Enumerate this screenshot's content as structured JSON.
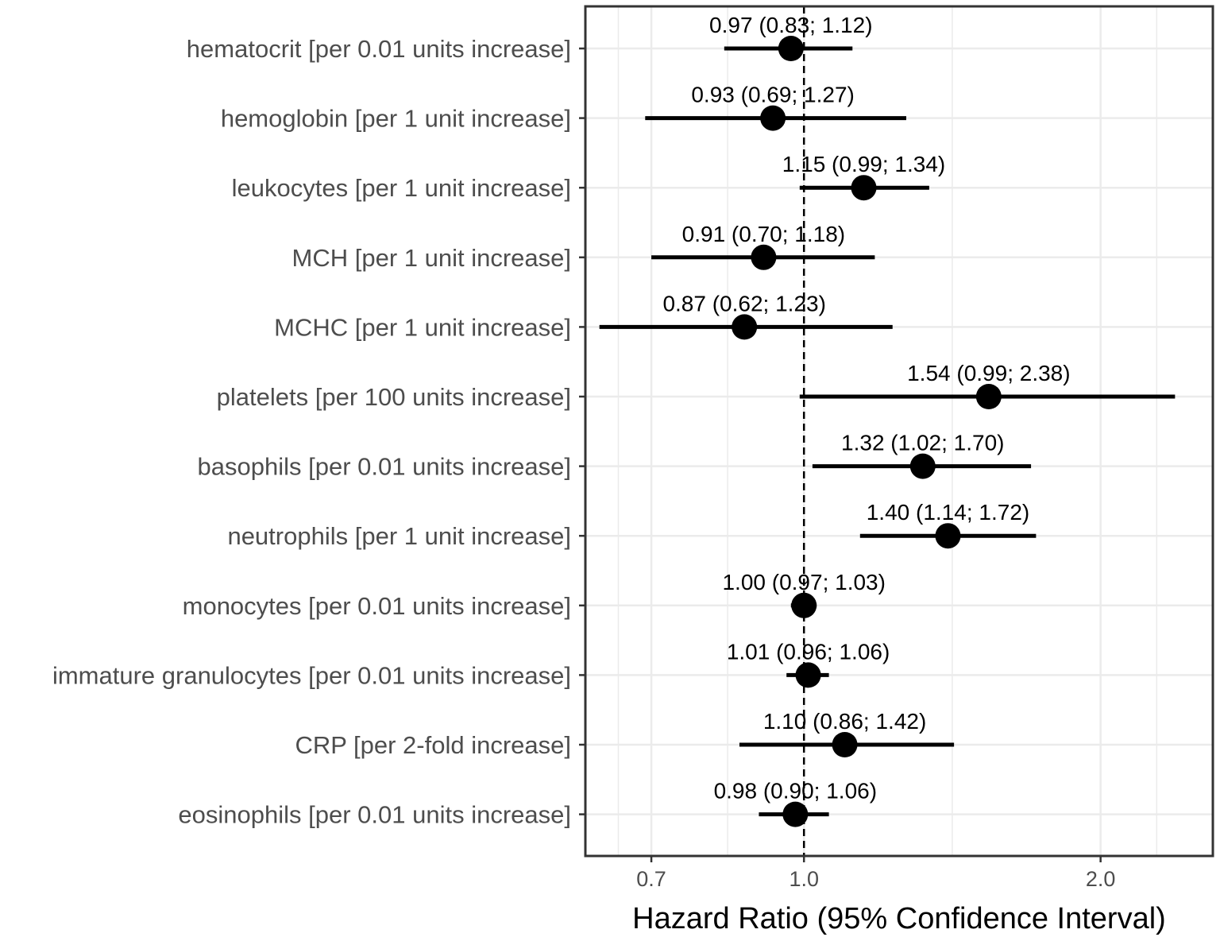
{
  "chart_data": {
    "type": "forest",
    "title": "",
    "xlabel": "Hazard Ratio (95% Confidence Interval)",
    "ylabel": "",
    "x_scale": "log",
    "xlim": [
      0.6,
      2.6
    ],
    "x_ticks": [
      0.7,
      1.0,
      2.0
    ],
    "x_tick_labels": [
      "0.7",
      "1.0",
      "2.0"
    ],
    "reference_line": 1.0,
    "grid": true,
    "colors": {
      "point": "#000000",
      "grid": "#ebebeb",
      "axis_text": "#4d4d4d",
      "panel_border": "#333333"
    },
    "rows": [
      {
        "label": "hematocrit [per 0.01 units increase]",
        "hr": 0.97,
        "lower": 0.83,
        "upper": 1.12,
        "text": "0.97 (0.83; 1.12)"
      },
      {
        "label": "hemoglobin [per 1 unit increase]",
        "hr": 0.93,
        "lower": 0.69,
        "upper": 1.27,
        "text": "0.93 (0.69; 1.27)"
      },
      {
        "label": "leukocytes [per 1 unit increase]",
        "hr": 1.15,
        "lower": 0.99,
        "upper": 1.34,
        "text": "1.15 (0.99; 1.34)"
      },
      {
        "label": "MCH [per 1 unit increase]",
        "hr": 0.91,
        "lower": 0.7,
        "upper": 1.18,
        "text": "0.91 (0.70; 1.18)"
      },
      {
        "label": "MCHC [per 1 unit increase]",
        "hr": 0.87,
        "lower": 0.62,
        "upper": 1.23,
        "text": "0.87 (0.62; 1.23)"
      },
      {
        "label": "platelets [per 100 units increase]",
        "hr": 1.54,
        "lower": 0.99,
        "upper": 2.38,
        "text": "1.54 (0.99; 2.38)"
      },
      {
        "label": "basophils [per 0.01 units increase]",
        "hr": 1.32,
        "lower": 1.02,
        "upper": 1.7,
        "text": "1.32 (1.02; 1.70)"
      },
      {
        "label": "neutrophils [per 1 unit increase]",
        "hr": 1.4,
        "lower": 1.14,
        "upper": 1.72,
        "text": "1.40 (1.14; 1.72)"
      },
      {
        "label": "monocytes [per 0.01 units increase]",
        "hr": 1.0,
        "lower": 0.97,
        "upper": 1.03,
        "text": "1.00 (0.97; 1.03)"
      },
      {
        "label": "immature granulocytes [per 0.01 units increase]",
        "hr": 1.01,
        "lower": 0.96,
        "upper": 1.06,
        "text": "1.01 (0.96; 1.06)"
      },
      {
        "label": "CRP [per 2-fold increase]",
        "hr": 1.1,
        "lower": 0.86,
        "upper": 1.42,
        "text": "1.10 (0.86; 1.42)"
      },
      {
        "label": "eosinophils [per 0.01 units increase]",
        "hr": 0.98,
        "lower": 0.9,
        "upper": 1.06,
        "text": "0.98 (0.90; 1.06)"
      }
    ]
  }
}
